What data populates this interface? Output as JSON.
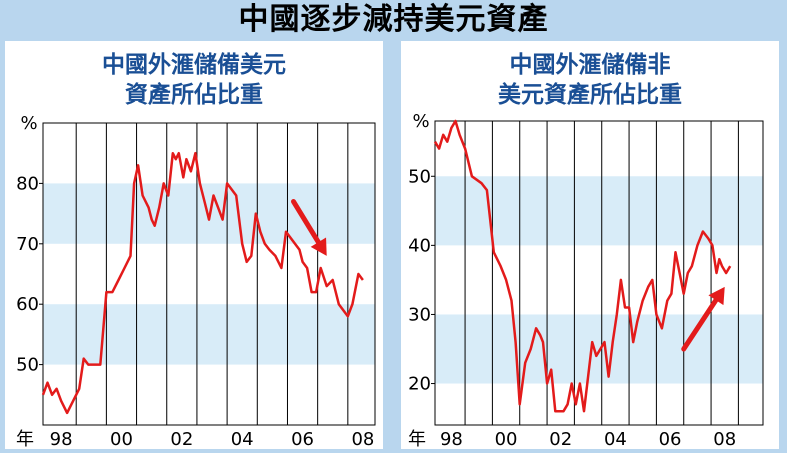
{
  "title": "中國逐步減持美元資產",
  "colors": {
    "background": "#b9d6ee",
    "panel": "#ffffff",
    "band": "#d8ecf8",
    "line": "#e31b1b",
    "arrow": "#e31b1b",
    "title_blue": "#1a4f95"
  },
  "chart_data": [
    {
      "type": "line",
      "title": [
        "中國外滙儲備美元",
        "資產所佔比重"
      ],
      "ylabel": "%",
      "xlabel": "年",
      "x_tick_labels": [
        "98",
        "00",
        "02",
        "04",
        "06",
        "08"
      ],
      "xlim": [
        1997.4,
        2008.4
      ],
      "ylim": [
        40,
        90
      ],
      "y_ticks": [
        50,
        60,
        70,
        80
      ],
      "grid": "vertical lines at half-year intervals, alternating horizontal bands",
      "trend_arrow": {
        "direction": "down",
        "from": [
          2005.7,
          77
        ],
        "to": [
          2006.8,
          68
        ]
      },
      "series": [
        {
          "x": [
            1997.4,
            1997.55,
            1997.7,
            1997.85,
            1998.0,
            1998.2,
            1998.6,
            1998.75,
            1998.9,
            1999.1,
            1999.3,
            1999.5,
            1999.7,
            1999.9,
            2000.1,
            2000.3,
            2000.42,
            2000.55,
            2000.7,
            2000.9,
            2001.0,
            2001.1,
            2001.25,
            2001.4,
            2001.55,
            2001.7,
            2001.8,
            2001.9,
            2002.05,
            2002.15,
            2002.3,
            2002.45,
            2002.6,
            2002.75,
            2002.9,
            2003.05,
            2003.2,
            2003.35,
            2003.5,
            2003.65,
            2003.8,
            2004.0,
            2004.15,
            2004.3,
            2004.45,
            2004.6,
            2004.75,
            2004.9,
            2005.1,
            2005.3,
            2005.45,
            2005.6,
            2005.75,
            2005.9,
            2006.0,
            2006.15,
            2006.3,
            2006.45,
            2006.6,
            2006.8,
            2007.0,
            2007.2,
            2007.35,
            2007.5,
            2007.65,
            2007.85,
            2008.0
          ],
          "values": [
            45,
            47,
            45,
            46,
            44,
            42,
            46,
            51,
            50,
            50,
            50,
            62,
            62,
            64,
            66,
            68,
            80,
            83,
            78,
            76,
            74,
            73,
            76,
            80,
            78,
            85,
            84,
            85,
            81,
            84,
            82,
            85,
            80,
            77,
            74,
            78,
            76,
            74,
            80,
            79,
            78,
            70,
            67,
            68,
            75,
            72,
            70,
            69,
            68,
            66,
            72,
            71,
            70,
            69,
            67,
            66,
            62,
            62,
            66,
            63,
            64,
            60,
            59,
            58,
            60,
            65,
            64
          ]
        }
      ]
    },
    {
      "type": "line",
      "title": [
        "中國外滙儲備非",
        "美元資產所佔比重"
      ],
      "ylabel": "%",
      "xlabel": "年",
      "x_tick_labels": [
        "98",
        "00",
        "02",
        "04",
        "06",
        "08"
      ],
      "xlim": [
        1997.4,
        2009.4
      ],
      "ylim": [
        14,
        58
      ],
      "y_ticks": [
        20,
        30,
        40,
        50
      ],
      "grid": "vertical lines at half-year intervals, alternating horizontal bands",
      "trend_arrow": {
        "direction": "up",
        "from": [
          2006.5,
          25
        ],
        "to": [
          2008.0,
          34
        ]
      },
      "series": [
        {
          "x": [
            1997.4,
            1997.55,
            1997.7,
            1997.85,
            1998.0,
            1998.15,
            1998.3,
            1998.5,
            1998.75,
            1999.1,
            1999.3,
            1999.55,
            1999.8,
            2000.0,
            2000.2,
            2000.35,
            2000.5,
            2000.7,
            2000.9,
            2001.1,
            2001.25,
            2001.35,
            2001.5,
            2001.65,
            2001.8,
            2001.95,
            2002.1,
            2002.25,
            2002.4,
            2002.55,
            2002.7,
            2002.85,
            2003.0,
            2003.15,
            2003.3,
            2003.45,
            2003.6,
            2003.75,
            2003.9,
            2004.05,
            2004.2,
            2004.35,
            2004.5,
            2004.65,
            2004.8,
            2005.0,
            2005.2,
            2005.35,
            2005.5,
            2005.7,
            2005.9,
            2006.05,
            2006.2,
            2006.35,
            2006.5,
            2006.65,
            2006.8,
            2007.0,
            2007.2,
            2007.4,
            2007.55,
            2007.7,
            2007.8,
            2007.9,
            2008.05,
            2008.2
          ],
          "values": [
            55,
            54,
            56,
            55,
            57,
            58,
            56,
            54,
            50,
            49,
            48,
            39,
            37,
            35,
            32,
            26,
            17,
            23,
            25,
            28,
            27,
            26,
            20,
            22,
            16,
            16,
            16,
            17,
            20,
            17,
            20,
            16,
            21,
            26,
            24,
            25,
            26,
            21,
            26,
            30,
            35,
            31,
            31,
            26,
            29,
            32,
            34,
            35,
            30,
            28,
            32,
            33,
            39,
            36,
            33,
            36,
            37,
            40,
            42,
            41,
            40,
            36,
            38,
            37,
            36,
            37
          ]
        }
      ]
    }
  ]
}
